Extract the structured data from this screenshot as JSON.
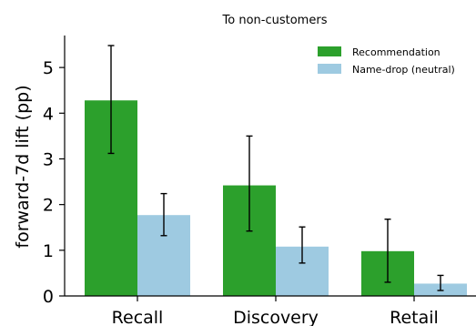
{
  "chart_data": {
    "type": "bar",
    "title": "To non-customers",
    "xlabel": "",
    "ylabel": "forward-7d lift (pp)",
    "categories": [
      "Recall",
      "Discovery",
      "Retail"
    ],
    "series": [
      {
        "name": "Recommendation",
        "color": "#2ca02c",
        "values": [
          4.28,
          2.42,
          0.98
        ],
        "error_low": [
          3.12,
          1.42,
          0.3
        ],
        "error_high": [
          5.48,
          3.5,
          1.68
        ]
      },
      {
        "name": "Name-drop (neutral)",
        "color": "#9ecae1",
        "values": [
          1.77,
          1.08,
          0.27
        ],
        "error_low": [
          1.32,
          0.72,
          0.12
        ],
        "error_high": [
          2.24,
          1.51,
          0.45
        ]
      }
    ],
    "ylim": [
      0,
      5.7
    ],
    "yticks": [
      0,
      1,
      2,
      3,
      4,
      5
    ],
    "grid": false,
    "legend_position": "top-right"
  }
}
